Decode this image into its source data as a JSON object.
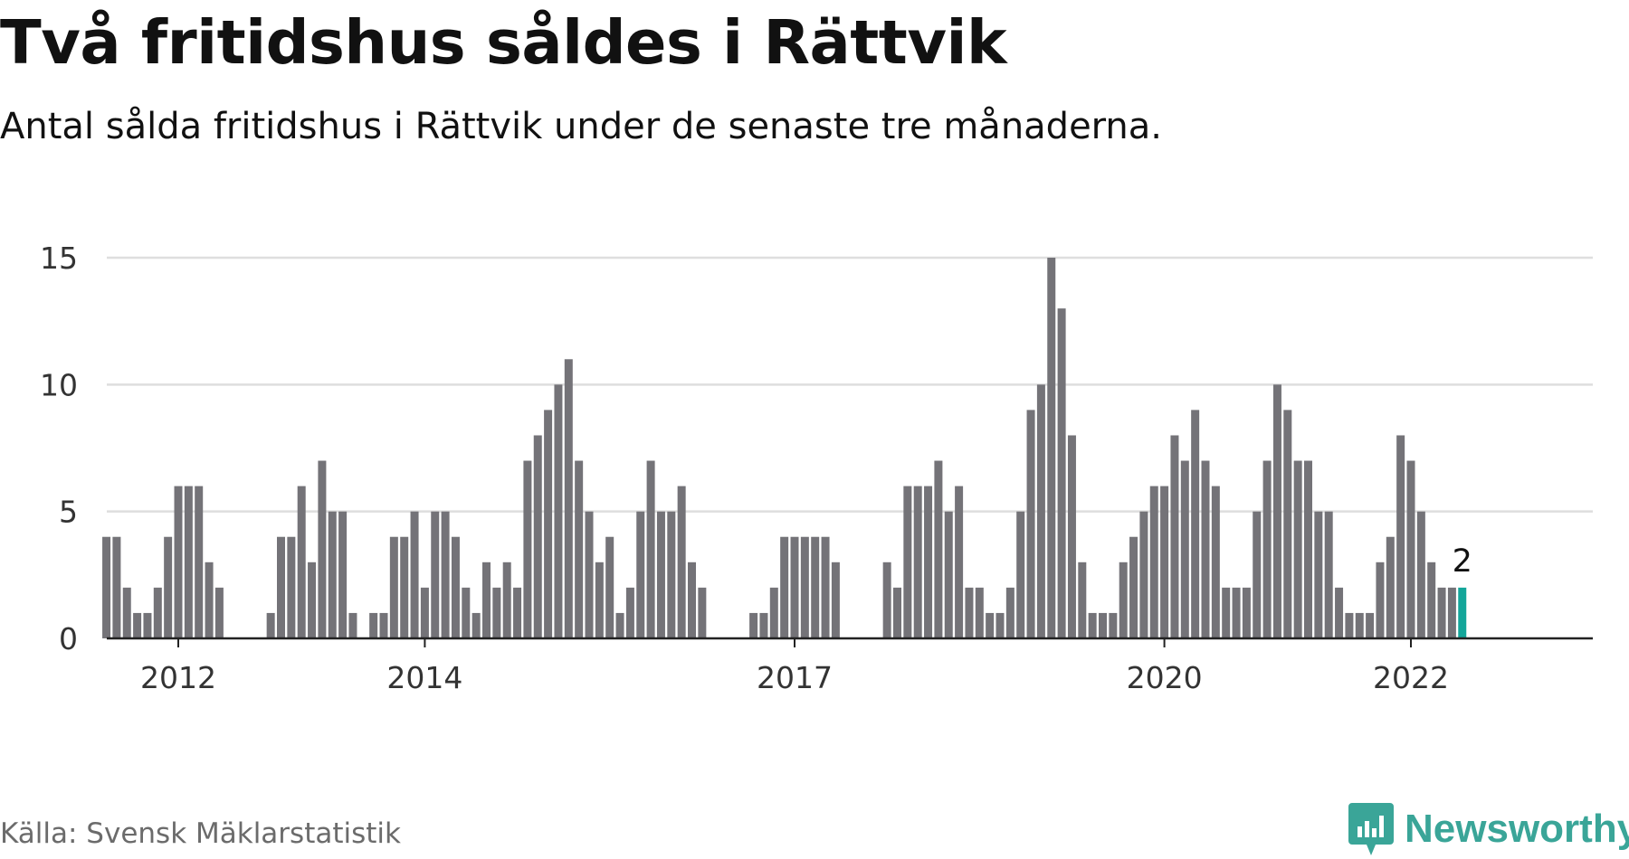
{
  "title": "Två fritidshus såldes i Rättvik",
  "subtitle": "Antal sålda fritidshus i Rättvik under de senaste tre månaderna.",
  "source": "Källa: Svensk Mäklarstatistik",
  "brand": "Newsworthy",
  "colors": {
    "bar": "#747378",
    "highlight": "#13a69a",
    "grid": "#dedede",
    "axis": "#222222",
    "brand": "#3aa598"
  },
  "chart_data": {
    "type": "bar",
    "ylim": [
      0,
      15
    ],
    "yticks": [
      0,
      5,
      10,
      15
    ],
    "xtick_labels": [
      {
        "label": "2012",
        "index": 0
      },
      {
        "label": "2014",
        "index": 24
      },
      {
        "label": "2017",
        "index": 60
      },
      {
        "label": "2020",
        "index": 96
      },
      {
        "label": "2022",
        "index": 120
      }
    ],
    "start_index": -7,
    "values": [
      4,
      4,
      2,
      1,
      1,
      2,
      4,
      6,
      6,
      6,
      3,
      2,
      null,
      null,
      null,
      null,
      1,
      4,
      4,
      6,
      3,
      7,
      5,
      5,
      1,
      null,
      1,
      1,
      4,
      4,
      5,
      2,
      5,
      5,
      4,
      2,
      1,
      3,
      2,
      3,
      2,
      7,
      8,
      9,
      10,
      11,
      7,
      5,
      3,
      4,
      1,
      2,
      5,
      7,
      5,
      5,
      6,
      3,
      2,
      null,
      null,
      null,
      null,
      1,
      1,
      2,
      4,
      4,
      4,
      4,
      4,
      3,
      null,
      null,
      null,
      null,
      3,
      2,
      6,
      6,
      6,
      7,
      5,
      6,
      2,
      2,
      1,
      1,
      2,
      5,
      9,
      10,
      15,
      13,
      8,
      3,
      1,
      1,
      1,
      3,
      4,
      5,
      6,
      6,
      8,
      7,
      9,
      7,
      6,
      2,
      2,
      2,
      5,
      7,
      10,
      9,
      7,
      7,
      5,
      5,
      2,
      1,
      1,
      1,
      3,
      4,
      8,
      7,
      5,
      3,
      2,
      2,
      2
    ],
    "highlight_last": true,
    "last_value_label": "2"
  }
}
